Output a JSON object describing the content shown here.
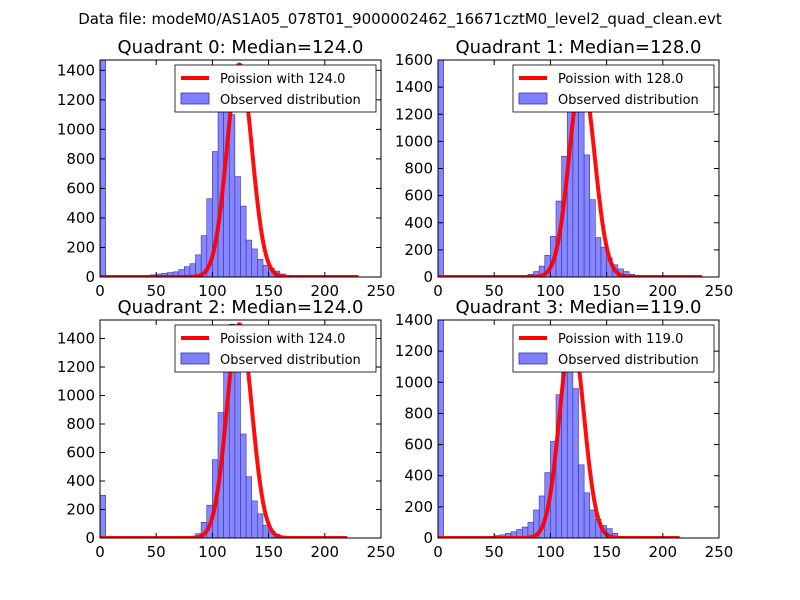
{
  "figure_title": "Data file: modeM0/AS1A05_078T01_9000002462_16671cztM0_level2_quad_clean.evt",
  "colors": {
    "fit": "#ff0000",
    "bars": "#7f7fff",
    "bar_edge": "#3333aa",
    "axes": "#000000"
  },
  "chart_data": [
    {
      "type": "bar",
      "title": "Quadrant 0: Median=124.0",
      "xlim": [
        0,
        250
      ],
      "ylim": [
        0,
        1470
      ],
      "xticks": [
        0,
        50,
        100,
        150,
        200,
        250
      ],
      "yticks": [
        0,
        200,
        400,
        600,
        800,
        1000,
        1200,
        1400
      ],
      "legend": {
        "location": "top-right",
        "fit_label": "Poission with 124.0",
        "bar_label": "Observed distribution"
      },
      "edge_bar": {
        "x": 0,
        "width": 5,
        "value": 1470
      },
      "bins": {
        "start": 40,
        "width": 5,
        "values": [
          10,
          15,
          20,
          25,
          30,
          35,
          50,
          70,
          90,
          150,
          280,
          530,
          850,
          1410,
          1420,
          1100,
          680,
          480,
          250,
          190,
          120,
          80,
          60,
          40,
          20,
          10,
          5,
          5,
          5
        ]
      },
      "fit": {
        "mu": 124,
        "peak": 1440,
        "x_range": [
          0,
          230
        ]
      }
    },
    {
      "type": "bar",
      "title": "Quadrant 1: Median=128.0",
      "xlim": [
        0,
        250
      ],
      "ylim": [
        0,
        1600
      ],
      "xticks": [
        0,
        50,
        100,
        150,
        200,
        250
      ],
      "yticks": [
        0,
        200,
        400,
        600,
        800,
        1000,
        1200,
        1400,
        1600
      ],
      "legend": {
        "location": "top-right",
        "fit_label": "Poission with 128.0",
        "bar_label": "Observed distribution"
      },
      "edge_bar": {
        "x": 0,
        "width": 5,
        "value": 1600
      },
      "bins": {
        "start": 80,
        "width": 5,
        "values": [
          20,
          40,
          80,
          160,
          300,
          560,
          890,
          1390,
          1480,
          1390,
          900,
          570,
          290,
          220,
          140,
          90,
          60,
          40,
          20,
          10,
          5,
          5
        ]
      },
      "fit": {
        "mu": 128,
        "peak": 1480,
        "x_range": [
          0,
          235
        ]
      }
    },
    {
      "type": "bar",
      "title": "Quadrant 2: Median=124.0",
      "xlim": [
        0,
        250
      ],
      "ylim": [
        0,
        1530
      ],
      "xticks": [
        0,
        50,
        100,
        150,
        200,
        250
      ],
      "yticks": [
        0,
        200,
        400,
        600,
        800,
        1000,
        1200,
        1400
      ],
      "legend": {
        "location": "top-right",
        "fit_label": "Poission with 124.0",
        "bar_label": "Observed distribution"
      },
      "edge_bar": {
        "x": 0,
        "width": 5,
        "value": 300
      },
      "bins": {
        "start": 75,
        "width": 5,
        "values": [
          5,
          10,
          30,
          110,
          230,
          550,
          880,
          1490,
          1500,
          1170,
          730,
          430,
          260,
          170,
          90,
          50,
          25,
          10,
          5,
          5
        ]
      },
      "fit": {
        "mu": 124,
        "peak": 1500,
        "x_range": [
          0,
          220
        ]
      }
    },
    {
      "type": "bar",
      "title": "Quadrant 3: Median=119.0",
      "xlim": [
        0,
        250
      ],
      "ylim": [
        0,
        1400
      ],
      "xticks": [
        0,
        50,
        100,
        150,
        200,
        250
      ],
      "yticks": [
        0,
        200,
        400,
        600,
        800,
        1000,
        1200,
        1400
      ],
      "legend": {
        "location": "top-right",
        "fit_label": "Poission with 119.0",
        "bar_label": "Observed distribution"
      },
      "edge_bar": {
        "x": 0,
        "width": 5,
        "value": 1400
      },
      "bins": {
        "start": 45,
        "width": 5,
        "values": [
          10,
          15,
          20,
          30,
          40,
          55,
          70,
          100,
          180,
          270,
          420,
          620,
          920,
          1250,
          1260,
          960,
          470,
          290,
          180,
          120,
          80,
          60,
          30,
          10,
          5,
          5,
          5
        ]
      },
      "fit": {
        "mu": 119,
        "peak": 1300,
        "x_range": [
          0,
          215
        ]
      }
    }
  ]
}
